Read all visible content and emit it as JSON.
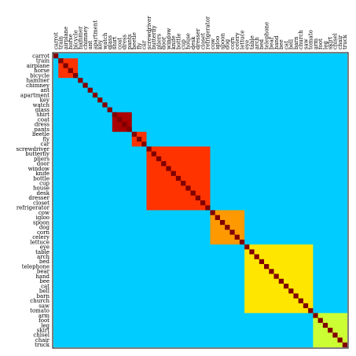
{
  "chart_data": {
    "type": "heatmap",
    "labels": [
      "carrot",
      "train",
      "airplane",
      "horse",
      "bicycle",
      "hammer",
      "chimney",
      "ant",
      "apartment",
      "key",
      "watch",
      "glass",
      "shirt",
      "coat",
      "dress",
      "pants",
      "beetle",
      "fly",
      "car",
      "screwdriver",
      "butterfly",
      "pliers",
      "door",
      "window",
      "knife",
      "bottle",
      "cup",
      "house",
      "desk",
      "dresser",
      "closet",
      "refrigerator",
      "cow",
      "igloo",
      "spoon",
      "dog",
      "corn",
      "celery",
      "lettuce",
      "eye",
      "table",
      "arch",
      "bed",
      "telephone",
      "bear",
      "hand",
      "bee",
      "cat",
      "bell",
      "barn",
      "church",
      "saw",
      "tomato",
      "arm",
      "foot",
      "leg",
      "skirt",
      "chisel",
      "chair",
      "truck"
    ],
    "blocks": [
      {
        "start": 1,
        "end": 4,
        "level": "high"
      },
      {
        "start": 12,
        "end": 15,
        "level": "very-high"
      },
      {
        "start": 16,
        "end": 18,
        "level": "high"
      },
      {
        "start": 19,
        "end": 31,
        "level": "high"
      },
      {
        "start": 32,
        "end": 38,
        "level": "medium"
      },
      {
        "start": 39,
        "end": 52,
        "level": "low"
      },
      {
        "start": 53,
        "end": 59,
        "level": "lowest"
      }
    ],
    "colors": {
      "background": "#00ccff",
      "diagonal": "#800000",
      "very-high": "#aa0000",
      "high": "#ff3300",
      "medium": "#ff9900",
      "low": "#ffe600",
      "lowest": "#ccff33",
      "frame": "#000000"
    },
    "grid": false,
    "legend": "none"
  }
}
